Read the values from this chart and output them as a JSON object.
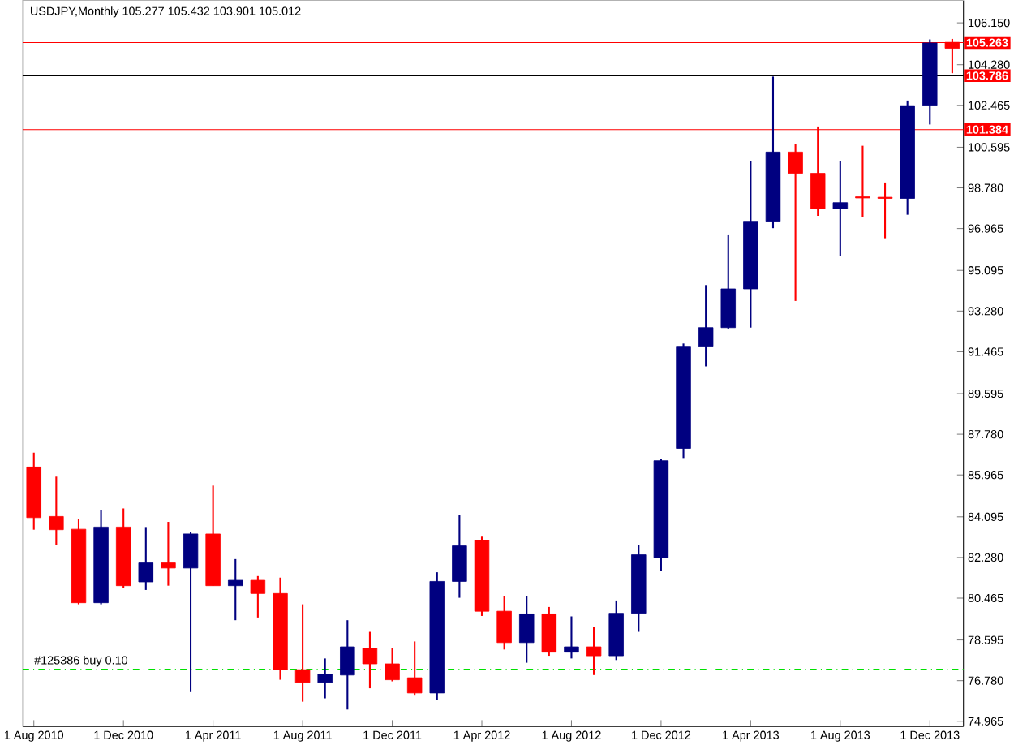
{
  "chart_data": {
    "type": "candlestick",
    "title": "USDJPY,Monthly  105.277 105.432 103.901 105.012",
    "categories": [
      "1 Aug 2010",
      null,
      null,
      null,
      "1 Dec 2010",
      null,
      null,
      null,
      "1 Apr 2011",
      null,
      null,
      null,
      "1 Aug 2011",
      null,
      null,
      null,
      "1 Dec 2011",
      null,
      null,
      null,
      "1 Apr 2012",
      null,
      null,
      null,
      "1 Aug 2012",
      null,
      null,
      null,
      "1 Dec 2012",
      null,
      null,
      null,
      "1 Apr 2013",
      null,
      null,
      null,
      "1 Aug 2013",
      null,
      null,
      null,
      "1 Dec 2013",
      null
    ],
    "ohlc": [
      [
        86.32,
        86.96,
        83.52,
        84.06
      ],
      [
        84.11,
        85.89,
        82.85,
        83.52
      ],
      [
        83.54,
        83.99,
        80.19,
        80.26
      ],
      [
        80.26,
        84.39,
        80.19,
        83.64
      ],
      [
        83.64,
        84.47,
        80.9,
        81.02
      ],
      [
        81.19,
        83.64,
        80.83,
        82.04
      ],
      [
        82.04,
        83.87,
        81.02,
        81.81
      ],
      [
        81.81,
        83.4,
        76.27,
        83.33
      ],
      [
        83.33,
        85.49,
        81.02,
        81.02
      ],
      [
        81.02,
        82.21,
        79.48,
        81.26
      ],
      [
        81.26,
        81.45,
        79.6,
        80.67
      ],
      [
        80.67,
        81.38,
        76.82,
        77.27
      ],
      [
        77.27,
        80.19,
        75.84,
        76.7
      ],
      [
        76.7,
        77.77,
        75.99,
        77.06
      ],
      [
        77.03,
        79.48,
        75.49,
        78.29
      ],
      [
        78.22,
        78.96,
        76.44,
        77.53
      ],
      [
        77.53,
        78.22,
        76.75,
        76.82
      ],
      [
        76.91,
        78.53,
        76.11,
        76.23
      ],
      [
        76.23,
        81.62,
        75.92,
        81.21
      ],
      [
        81.21,
        84.16,
        80.48,
        82.8
      ],
      [
        83.04,
        83.21,
        79.67,
        79.88
      ],
      [
        79.88,
        80.55,
        78.17,
        78.48
      ],
      [
        78.48,
        80.55,
        77.58,
        79.76
      ],
      [
        79.76,
        80.07,
        77.89,
        78.05
      ],
      [
        78.05,
        79.65,
        77.77,
        78.29
      ],
      [
        78.29,
        79.19,
        77.03,
        77.89
      ],
      [
        77.89,
        80.36,
        77.7,
        79.79
      ],
      [
        79.79,
        82.85,
        78.96,
        82.4
      ],
      [
        82.28,
        86.67,
        81.66,
        86.6
      ],
      [
        87.15,
        91.83,
        86.72,
        91.71
      ],
      [
        91.71,
        94.44,
        90.81,
        92.54
      ],
      [
        92.54,
        96.7,
        92.47,
        94.27
      ],
      [
        94.27,
        99.98,
        92.54,
        97.29
      ],
      [
        97.29,
        103.75,
        96.98,
        100.38
      ],
      [
        100.38,
        100.74,
        93.73,
        99.43
      ],
      [
        99.43,
        101.52,
        97.53,
        97.84
      ],
      [
        97.84,
        99.98,
        95.75,
        98.12
      ],
      [
        98.38,
        100.66,
        97.46,
        98.33
      ],
      [
        98.36,
        99.02,
        96.53,
        98.31
      ],
      [
        98.31,
        102.68,
        97.58,
        102.45
      ],
      [
        102.47,
        105.41,
        101.61,
        105.25
      ],
      [
        105.277,
        105.432,
        103.901,
        105.012
      ]
    ],
    "colors": [
      "#ff0000",
      "#ff0000",
      "#ff0000",
      "#000080",
      "#ff0000",
      "#000080",
      "#ff0000",
      "#000080",
      "#ff0000",
      "#000080",
      "#ff0000",
      "#ff0000",
      "#ff0000",
      "#000080",
      "#000080",
      "#ff0000",
      "#ff0000",
      "#ff0000",
      "#000080",
      "#000080",
      "#ff0000",
      "#ff0000",
      "#000080",
      "#ff0000",
      "#000080",
      "#ff0000",
      "#000080",
      "#000080",
      "#000080",
      "#000080",
      "#000080",
      "#000080",
      "#000080",
      "#000080",
      "#ff0000",
      "#ff0000",
      "#000080",
      "#ff0000",
      "#ff0000",
      "#000080",
      "#000080",
      "#ff0000"
    ],
    "ylim": [
      74.73,
      107.15
    ],
    "yticks": [
      {
        "value": 106.15,
        "label": "106.150"
      },
      {
        "value": 104.28,
        "label": "104.280"
      },
      102.465,
      100.595,
      {
        "value": 98.78,
        "label": "98.780"
      },
      96.965,
      95.095,
      {
        "value": 93.28,
        "label": "93.280"
      },
      91.465,
      89.595,
      {
        "value": 87.78,
        "label": "87.780"
      },
      85.965,
      84.095,
      {
        "value": 82.28,
        "label": "82.280"
      },
      80.465,
      78.595,
      {
        "value": 76.78,
        "label": "76.780"
      },
      74.965
    ],
    "ref_lines": [
      {
        "axis": "y",
        "value": 105.263,
        "label": "105.263",
        "color": "#ff0000"
      },
      {
        "axis": "y",
        "value": 103.786,
        "label": "103.786",
        "color": "#000000"
      },
      {
        "axis": "y",
        "value": 101.384,
        "label": "101.384",
        "color": "#ff0000"
      },
      {
        "axis": "y",
        "value": 77.29,
        "label": "#125386 buy 0.10",
        "color": "#00e000",
        "line_style": "dashed"
      }
    ],
    "grid": false
  }
}
